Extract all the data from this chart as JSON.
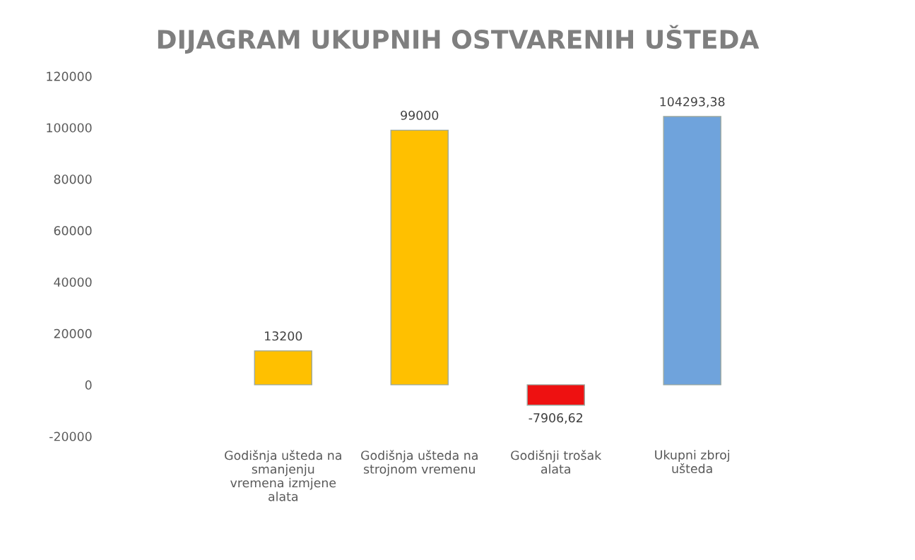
{
  "chart_data": {
    "type": "bar",
    "title": "DIJAGRAM UKUPNIH OSTVARENIH UŠTEDA",
    "categories": [
      "Godišnja ušteda na\nsmanjenju\nvremena izmjene\nalata",
      "Godišnja ušteda na\nstrojnom vremenu",
      "Godišnji trošak\nalata",
      "Ukupni zbroj\nušteda"
    ],
    "values": [
      13200,
      99000,
      -7906.62,
      104293.38
    ],
    "colors": [
      "#ffc000",
      "#ffc000",
      "#ee1111",
      "#6fa3dc"
    ],
    "value_labels": [
      "13200",
      "99000",
      "-7906,62",
      "104293,38"
    ],
    "ylim": [
      -20000,
      120000
    ],
    "yticks": [
      -20000,
      0,
      20000,
      40000,
      60000,
      80000,
      100000,
      120000
    ],
    "grid": false
  }
}
